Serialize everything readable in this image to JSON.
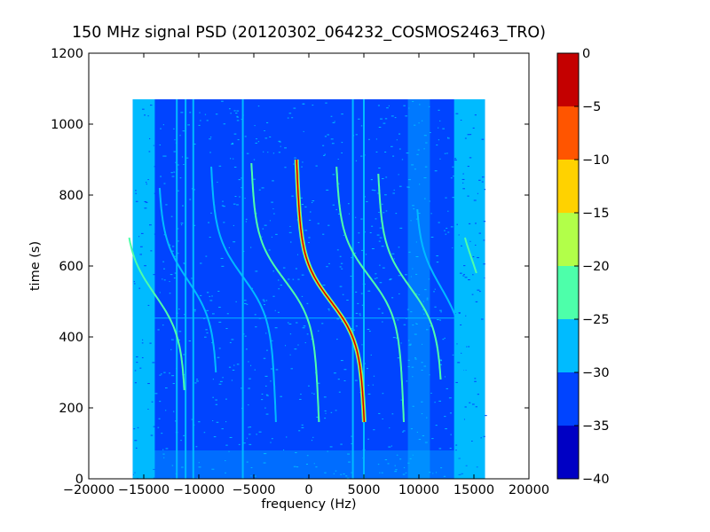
{
  "chart_data": {
    "type": "heatmap",
    "title": "150 MHz signal PSD (20120302_064232_COSMOS2463_TRO)",
    "xlabel": "frequency (Hz)",
    "ylabel": "time (s)",
    "xlim": [
      -20000,
      20000
    ],
    "ylim": [
      0,
      1200
    ],
    "xticks": [
      -20000,
      -15000,
      -10000,
      -5000,
      0,
      5000,
      10000,
      15000,
      20000
    ],
    "xtick_labels": [
      "−20000",
      "−15000",
      "−10000",
      "−5000",
      "0",
      "5000",
      "10000",
      "15000",
      "20000"
    ],
    "yticks": [
      0,
      200,
      400,
      600,
      800,
      1000,
      1200
    ],
    "ytick_labels": [
      "0",
      "200",
      "400",
      "600",
      "800",
      "1000",
      "1200"
    ],
    "data_extent": {
      "x": [
        -16000,
        16000
      ],
      "y": [
        0,
        1070
      ]
    },
    "background_level_db": -32,
    "edge_band_level_db": -28,
    "colorbar": {
      "min": -40,
      "max": 0,
      "levels": [
        -40,
        -35,
        -30,
        -25,
        -20,
        -15,
        -10,
        -5,
        0
      ],
      "tick_labels": [
        "−40",
        "−35",
        "−30",
        "−25",
        "−20",
        "−15",
        "−10",
        "−5",
        "0"
      ],
      "colors": [
        "#0000c4",
        "#0044ff",
        "#00bbff",
        "#4dffaa",
        "#b2ff49",
        "#ffd200",
        "#ff5500",
        "#c40000"
      ]
    },
    "vertical_lines_hz": [
      -12000,
      -11200,
      -10500,
      -6000,
      4000,
      5000
    ],
    "doppler_traces": [
      {
        "center_hz": 2000,
        "center_time_s": 500,
        "amplitude_hz": 2600,
        "t_start_s": 160,
        "t_end_s": 900,
        "peak_db": -2
      },
      {
        "center_hz": -2200,
        "center_time_s": 560,
        "amplitude_hz": 2600,
        "t_start_s": 160,
        "t_end_s": 890,
        "peak_db": -24
      },
      {
        "center_hz": -6000,
        "center_time_s": 570,
        "amplitude_hz": 2500,
        "t_start_s": 160,
        "t_end_s": 880,
        "peak_db": -26
      },
      {
        "center_hz": 5500,
        "center_time_s": 570,
        "amplitude_hz": 2600,
        "t_start_s": 160,
        "t_end_s": 880,
        "peak_db": -24
      },
      {
        "center_hz": 9200,
        "center_time_s": 540,
        "amplitude_hz": 2500,
        "t_start_s": 280,
        "t_end_s": 860,
        "peak_db": -25
      },
      {
        "center_hz": -11000,
        "center_time_s": 560,
        "amplitude_hz": 2300,
        "t_start_s": 300,
        "t_end_s": 820,
        "peak_db": -27
      },
      {
        "center_hz": -14000,
        "center_time_s": 520,
        "amplitude_hz": 2400,
        "t_start_s": 250,
        "t_end_s": 680,
        "peak_db": -25
      },
      {
        "center_hz": 12000,
        "center_time_s": 540,
        "amplitude_hz": 2000,
        "t_start_s": 300,
        "t_end_s": 760,
        "peak_db": -27
      },
      {
        "center_hz": 14800,
        "center_time_s": 620,
        "amplitude_hz": 1200,
        "t_start_s": 580,
        "t_end_s": 680,
        "peak_db": -25
      }
    ]
  }
}
